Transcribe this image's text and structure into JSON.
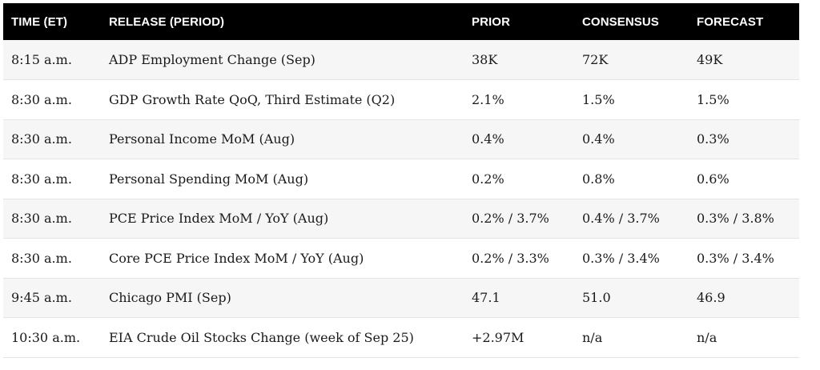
{
  "table": {
    "headers": {
      "time": "TIME (ET)",
      "release": "RELEASE (PERIOD)",
      "prior": "PRIOR",
      "consensus": "CONSENSUS",
      "forecast": "FORECAST"
    },
    "rows": [
      {
        "time": "8:15 a.m.",
        "release": "ADP Employment Change (Sep)",
        "prior": "38K",
        "consensus": "72K",
        "forecast": "49K"
      },
      {
        "time": "8:30 a.m.",
        "release": "GDP Growth Rate QoQ, Third Estimate (Q2)",
        "prior": "2.1%",
        "consensus": "1.5%",
        "forecast": "1.5%"
      },
      {
        "time": "8:30 a.m.",
        "release": "Personal Income MoM (Aug)",
        "prior": "0.4%",
        "consensus": "0.4%",
        "forecast": "0.3%"
      },
      {
        "time": "8:30 a.m.",
        "release": "Personal Spending MoM (Aug)",
        "prior": "0.2%",
        "consensus": "0.8%",
        "forecast": "0.6%"
      },
      {
        "time": "8:30 a.m.",
        "release": "PCE Price Index MoM / YoY (Aug)",
        "prior": "0.2% / 3.7%",
        "consensus": "0.4% / 3.7%",
        "forecast": "0.3% / 3.8%"
      },
      {
        "time": "8:30 a.m.",
        "release": "Core PCE Price Index MoM / YoY (Aug)",
        "prior": "0.2% / 3.3%",
        "consensus": "0.3% / 3.4%",
        "forecast": "0.3% / 3.4%"
      },
      {
        "time": "9:45 a.m.",
        "release": "Chicago PMI (Sep)",
        "prior": "47.1",
        "consensus": "51.0",
        "forecast": "46.9"
      },
      {
        "time": "10:30 a.m.",
        "release": "EIA Crude Oil Stocks Change (week of Sep 25)",
        "prior": "+2.97M",
        "consensus": "n/a",
        "forecast": "n/a"
      }
    ]
  },
  "colors": {
    "header_bg": "#000000",
    "header_text": "#ffffff",
    "row_alt_bg": "#f6f6f6",
    "row_bg": "#ffffff",
    "divider": "#e4e4e4"
  }
}
